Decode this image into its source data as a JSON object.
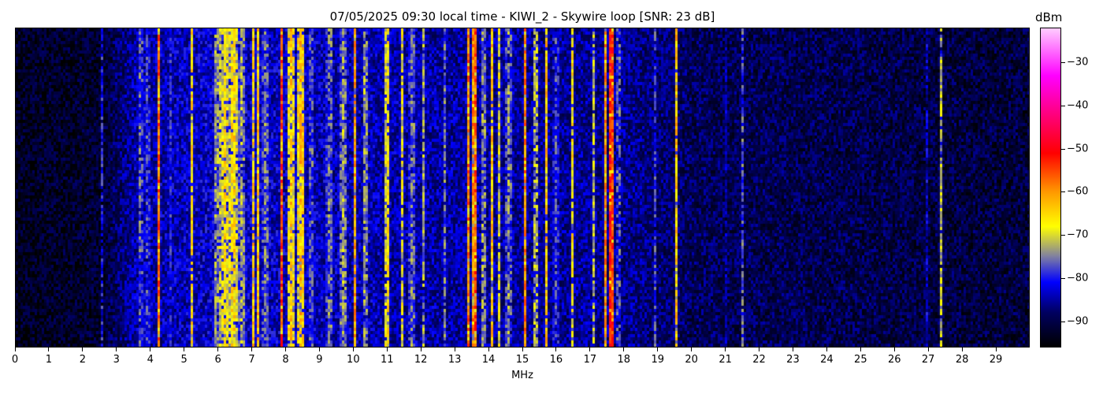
{
  "chart_data": {
    "type": "heatmap",
    "title": "07/05/2025 09:30 local time - KIWI_2 - Skywire loop [SNR: 23 dB]",
    "xlabel": "MHz",
    "ylabel": "",
    "xlim": [
      0,
      30
    ],
    "x_ticks": [
      "0",
      "1",
      "2",
      "3",
      "4",
      "5",
      "6",
      "7",
      "8",
      "9",
      "10",
      "11",
      "12",
      "13",
      "14",
      "15",
      "16",
      "17",
      "18",
      "19",
      "20",
      "21",
      "22",
      "23",
      "24",
      "25",
      "26",
      "27",
      "28",
      "29"
    ],
    "colorbar": {
      "label": "dBm",
      "range": [
        -96,
        -22
      ],
      "ticks": [
        "−30",
        "−40",
        "−50",
        "−60",
        "−70",
        "−80",
        "−90"
      ],
      "tick_values": [
        -30,
        -40,
        -50,
        -60,
        -70,
        -80,
        -90
      ],
      "colormap": [
        {
          "v": -96,
          "c": "#000000"
        },
        {
          "v": -88,
          "c": "#000060"
        },
        {
          "v": -81,
          "c": "#0000ff"
        },
        {
          "v": -75,
          "c": "#8080a0"
        },
        {
          "v": -68,
          "c": "#ffff00"
        },
        {
          "v": -60,
          "c": "#ff9900"
        },
        {
          "v": -51,
          "c": "#ff0000"
        },
        {
          "v": -40,
          "c": "#ff0099"
        },
        {
          "v": -33,
          "c": "#ff00ff"
        },
        {
          "v": -22,
          "c": "#ffccff"
        }
      ]
    },
    "noise_floor_dbm": [
      {
        "f": 0,
        "level": -93
      },
      {
        "f": 2.5,
        "level": -92
      },
      {
        "f": 3.5,
        "level": -85
      },
      {
        "f": 6,
        "level": -83
      },
      {
        "f": 12,
        "level": -85
      },
      {
        "f": 18,
        "level": -86
      },
      {
        "f": 20,
        "level": -89
      },
      {
        "f": 30,
        "level": -91
      }
    ],
    "signals_mhz_dbm": [
      {
        "f": 2.55,
        "level": -80,
        "w": 0.02
      },
      {
        "f": 3.7,
        "level": -74,
        "w": 0.05
      },
      {
        "f": 3.9,
        "level": -78,
        "w": 0.1
      },
      {
        "f": 4.25,
        "level": -54,
        "w": 0.03
      },
      {
        "f": 4.6,
        "level": -78,
        "w": 0.03
      },
      {
        "f": 5.2,
        "level": -64,
        "w": 0.04
      },
      {
        "f": 5.95,
        "level": -70,
        "w": 0.05
      },
      {
        "f": 6.2,
        "level": -66,
        "w": 0.15
      },
      {
        "f": 6.45,
        "level": -64,
        "w": 0.1
      },
      {
        "f": 6.7,
        "level": -72,
        "w": 0.1
      },
      {
        "f": 7.05,
        "level": -62,
        "w": 0.05
      },
      {
        "f": 7.15,
        "level": -60,
        "w": 0.04
      },
      {
        "f": 7.4,
        "level": -74,
        "w": 0.1
      },
      {
        "f": 7.85,
        "level": -50,
        "w": 0.02
      },
      {
        "f": 8.15,
        "level": -64,
        "w": 0.12
      },
      {
        "f": 8.45,
        "level": -62,
        "w": 0.1
      },
      {
        "f": 8.75,
        "level": -76,
        "w": 0.1
      },
      {
        "f": 9.3,
        "level": -74,
        "w": 0.1
      },
      {
        "f": 9.7,
        "level": -72,
        "w": 0.1
      },
      {
        "f": 10.05,
        "level": -60,
        "w": 0.04
      },
      {
        "f": 10.35,
        "level": -70,
        "w": 0.05
      },
      {
        "f": 11.0,
        "level": -64,
        "w": 0.05
      },
      {
        "f": 11.45,
        "level": -68,
        "w": 0.05
      },
      {
        "f": 11.75,
        "level": -74,
        "w": 0.1
      },
      {
        "f": 12.05,
        "level": -70,
        "w": 0.03
      },
      {
        "f": 12.7,
        "level": -76,
        "w": 0.05
      },
      {
        "f": 13.4,
        "level": -58,
        "w": 0.05
      },
      {
        "f": 13.6,
        "level": -54,
        "w": 0.06
      },
      {
        "f": 13.85,
        "level": -72,
        "w": 0.08
      },
      {
        "f": 14.1,
        "level": -64,
        "w": 0.05
      },
      {
        "f": 14.3,
        "level": -68,
        "w": 0.05
      },
      {
        "f": 14.6,
        "level": -74,
        "w": 0.1
      },
      {
        "f": 15.1,
        "level": -56,
        "w": 0.03
      },
      {
        "f": 15.4,
        "level": -70,
        "w": 0.08
      },
      {
        "f": 15.7,
        "level": -62,
        "w": 0.04
      },
      {
        "f": 16.0,
        "level": -78,
        "w": 0.1
      },
      {
        "f": 16.5,
        "level": -64,
        "w": 0.02
      },
      {
        "f": 17.1,
        "level": -70,
        "w": 0.03
      },
      {
        "f": 17.45,
        "level": -58,
        "w": 0.03
      },
      {
        "f": 17.62,
        "level": -50,
        "w": 0.07
      },
      {
        "f": 17.85,
        "level": -74,
        "w": 0.05
      },
      {
        "f": 18.95,
        "level": -76,
        "w": 0.04
      },
      {
        "f": 19.55,
        "level": -62,
        "w": 0.02
      },
      {
        "f": 21.0,
        "level": -80,
        "w": 0.02
      },
      {
        "f": 21.5,
        "level": -74,
        "w": 0.02
      },
      {
        "f": 27.0,
        "level": -80,
        "w": 0.02
      },
      {
        "f": 27.4,
        "level": -72,
        "w": 0.02
      }
    ]
  }
}
